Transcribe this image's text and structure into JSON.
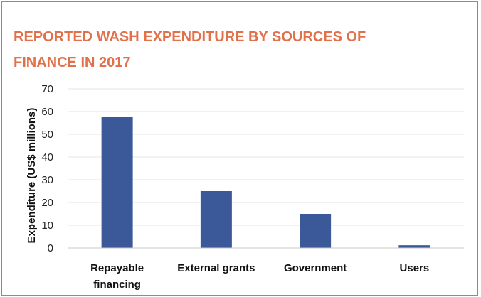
{
  "chart_data": {
    "type": "bar",
    "title": "REPORTED WASH EXPENDITURE BY SOURCES OF FINANCE IN 2017",
    "xlabel": "",
    "ylabel": "Expenditure (US$ millions)",
    "ylim": [
      0,
      70
    ],
    "yticks": [
      0,
      10,
      20,
      30,
      40,
      50,
      60,
      70
    ],
    "categories": [
      [
        "Repayable",
        "financing"
      ],
      [
        "External grants"
      ],
      [
        "Government"
      ],
      [
        "Users"
      ]
    ],
    "values": [
      57.5,
      25,
      15,
      1.2
    ],
    "grid": true,
    "legend": "none",
    "bar_color": "#3b5998",
    "grid_color": "#e6e6e6",
    "axis_color": "#c8c8c8",
    "title_color": "#e0714a",
    "border_color": "#d9704a"
  }
}
